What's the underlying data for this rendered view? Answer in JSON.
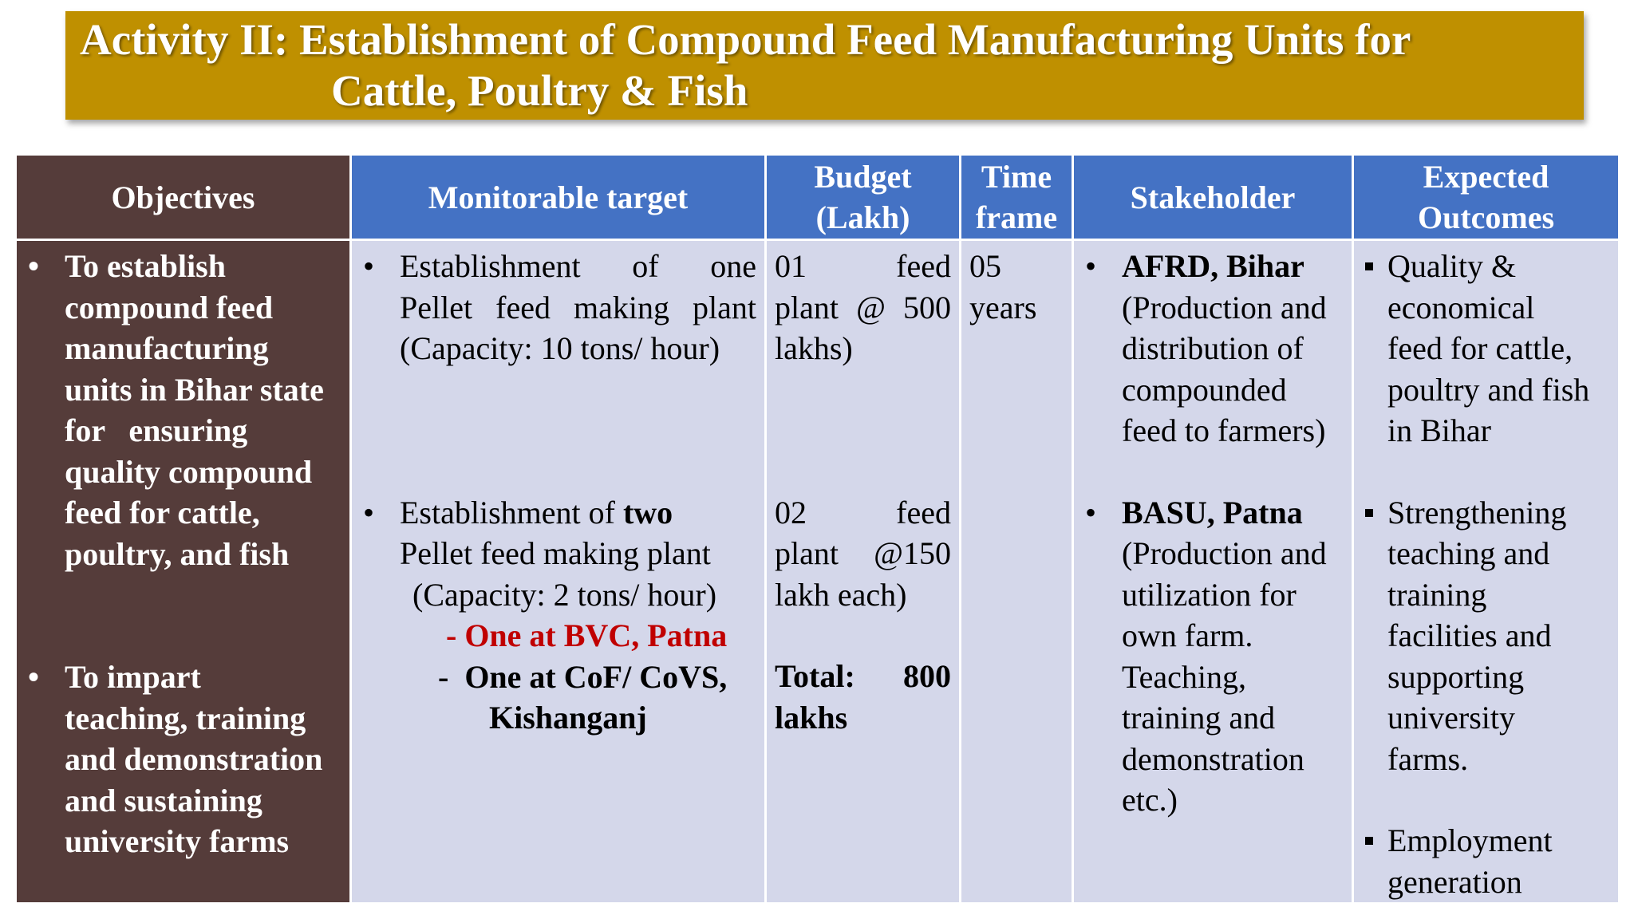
{
  "title": {
    "line1": "Activity II: Establishment of Compound Feed Manufacturing Units for",
    "line2": "Cattle, Poultry & Fish"
  },
  "headers": {
    "objectives": "Objectives",
    "target": "Monitorable target",
    "budget_1": "Budget",
    "budget_2": "(Lakh)",
    "time_1": "Time",
    "time_2": "frame",
    "stakeholder": "Stakeholder",
    "outcomes_1": "Expected",
    "outcomes_2": "Outcomes"
  },
  "objectives": {
    "obj1": [
      "To establish",
      "compound feed",
      "manufacturing",
      "units in Bihar state",
      "for   ensuring",
      "quality compound",
      "feed for cattle,",
      "poultry, and fish"
    ],
    "obj2": [
      "To impart",
      "teaching, training",
      "and demonstration",
      "and sustaining",
      "university farms"
    ]
  },
  "targets": {
    "t1": [
      "Establishment   of   one",
      "Pellet  feed  making  plant",
      "(Capacity: 10 tons/ hour)"
    ],
    "t2_prefix": "Establishment of ",
    "t2_bold": "two",
    "t2_rest": [
      "Pellet feed making plant",
      "(Capacity: 2 tons/ hour)"
    ],
    "sub1": "- One at BVC, Patna",
    "sub2a": "-  One at CoF/ CoVS,",
    "sub2b": "Kishanganj"
  },
  "budget": {
    "b1": [
      "01          feed",
      "plant  @  500",
      "lakhs)"
    ],
    "b2": [
      "02          feed",
      "plant    @150",
      "lakh each)"
    ],
    "total": [
      "Total:     800",
      "lakhs"
    ]
  },
  "timeframe": [
    "05",
    "years"
  ],
  "stakeholders": {
    "s1_name": "AFRD, Bihar",
    "s1_desc": [
      "(Production and",
      "distribution of",
      "compounded",
      "feed to farmers)"
    ],
    "s2_name": "BASU, Patna",
    "s2_desc": [
      "(Production and",
      "utilization for",
      "own farm.",
      "Teaching,",
      "training and",
      "demonstration",
      "etc.)"
    ]
  },
  "outcomes": {
    "o1": [
      "Quality &",
      "economical",
      "feed for cattle,",
      "poultry and fish",
      "in Bihar"
    ],
    "o2": [
      "Strengthening",
      "teaching and",
      "training",
      "facilities and",
      "supporting",
      "university",
      "farms."
    ],
    "o3": [
      "Employment",
      "generation"
    ]
  },
  "colors": {
    "title_bg": "#bf9000",
    "header_blue": "#4472c4",
    "objective_brown": "#553c3a",
    "cell_lavender": "#d4d7ea",
    "highlight_red": "#c00000"
  }
}
